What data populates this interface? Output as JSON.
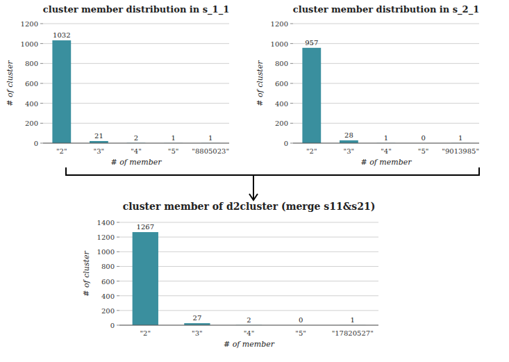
{
  "chart_data": [
    {
      "type": "bar",
      "title": "cluster member distribution in s_1_1",
      "categories": [
        "\"2\"",
        "\"3\"",
        "\"4\"",
        "\"5\"",
        "\"8805023\""
      ],
      "values": [
        1032,
        21,
        2,
        1,
        1
      ],
      "ylabel": "# of cluster",
      "xlabel": "# of member",
      "ylim": [
        0,
        1200
      ],
      "yticks": [
        0,
        200,
        400,
        600,
        800,
        1000,
        1200
      ],
      "color": "#3a8f9e",
      "grid": true,
      "data_labels": true
    },
    {
      "type": "bar",
      "title": "cluster member distribution in s_2_1",
      "categories": [
        "\"2\"",
        "\"3\"",
        "\"4\"",
        "\"5\"",
        "\"9013985\""
      ],
      "values": [
        957,
        28,
        1,
        0,
        1
      ],
      "ylabel": "# of cluster",
      "xlabel": "# of member",
      "ylim": [
        0,
        1200
      ],
      "yticks": [
        0,
        200,
        400,
        600,
        800,
        1000,
        1200
      ],
      "color": "#3a8f9e",
      "grid": true,
      "data_labels": true
    },
    {
      "type": "bar",
      "title": "cluster member of d2cluster (merge s11&s21)",
      "categories": [
        "\"2\"",
        "\"3\"",
        "\"4\"",
        "\"5\"",
        "\"17820527\""
      ],
      "values": [
        1267,
        27,
        2,
        0,
        1
      ],
      "ylabel": "# of cluster",
      "xlabel": "# of member",
      "ylim": [
        0,
        1400
      ],
      "yticks": [
        0,
        200,
        400,
        600,
        800,
        1000,
        1200,
        1400
      ],
      "color": "#3a8f9e",
      "grid": true,
      "data_labels": true
    }
  ]
}
